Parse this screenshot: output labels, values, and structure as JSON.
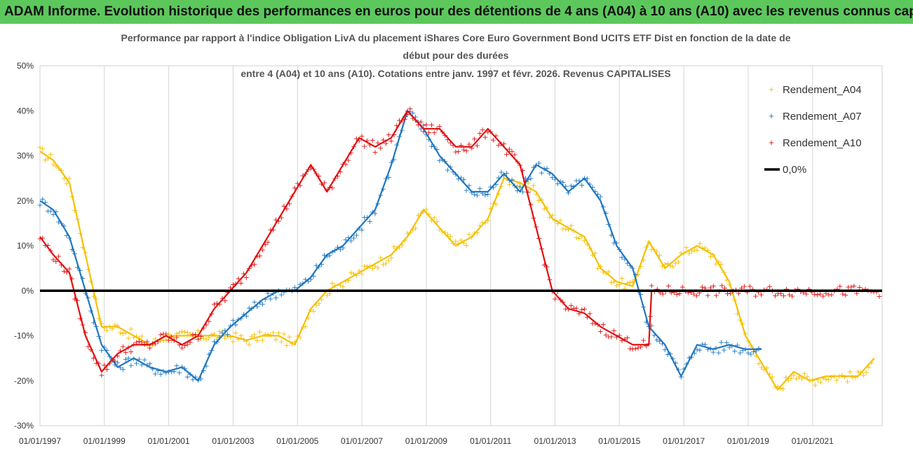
{
  "banner": "ADAM Informe. Evolution historique des performances en euros pour des détentions de 4 ans (A04) à 10 ans (A10) avec les revenus connus capitalisés",
  "chart_data": {
    "type": "scatter",
    "title_lines": [
      "Performance par rapport à l'indice Obligation LivA  du placement iShares Core Euro Government Bond UCITS ETF Dist en fonction de la date de",
      "début pour des durées",
      "entre 4 (A04) et 10 ans (A10). Cotations entre janv. 1997 et févr. 2026. Revenus CAPITALISES"
    ],
    "x_tick_labels": [
      "01/01/1997",
      "01/01/1999",
      "01/01/2001",
      "01/01/2003",
      "01/01/2005",
      "01/01/2007",
      "01/01/2009",
      "01/01/2011",
      "01/01/2013",
      "01/01/2015",
      "01/01/2017",
      "01/01/2019",
      "01/01/2021"
    ],
    "y_tick_labels": [
      "50%",
      "40%",
      "30%",
      "20%",
      "10%",
      "0%",
      "-10%",
      "-20%",
      "-30%"
    ],
    "xlim": [
      "1997-01-01",
      "2023-03-01"
    ],
    "ylim": [
      -30,
      50
    ],
    "grid": "vertical",
    "legend_position": "right",
    "series": [
      {
        "name": "Rendement_A04",
        "color": "#f5c000",
        "points": [
          [
            "1997-01",
            "31"
          ],
          [
            "1997-06",
            "29"
          ],
          [
            "1997-12",
            "24"
          ],
          [
            "1998-06",
            "8"
          ],
          [
            "1998-12",
            "-8"
          ],
          [
            "1999-06",
            "-8"
          ],
          [
            "1999-12",
            "-10"
          ],
          [
            "2000-06",
            "-12"
          ],
          [
            "2000-12",
            "-10"
          ],
          [
            "2001-06",
            "-10"
          ],
          [
            "2001-12",
            "-10"
          ],
          [
            "2002-06",
            "-10"
          ],
          [
            "2002-12",
            "-10"
          ],
          [
            "2003-06",
            "-11"
          ],
          [
            "2003-12",
            "-10"
          ],
          [
            "2004-06",
            "-10"
          ],
          [
            "2004-12",
            "-12"
          ],
          [
            "2005-06",
            "-4"
          ],
          [
            "2005-12",
            "0"
          ],
          [
            "2006-06",
            "2"
          ],
          [
            "2006-12",
            "4"
          ],
          [
            "2007-06",
            "6"
          ],
          [
            "2007-12",
            "8"
          ],
          [
            "2008-06",
            "12"
          ],
          [
            "2008-12",
            "18"
          ],
          [
            "2009-06",
            "14"
          ],
          [
            "2009-12",
            "10"
          ],
          [
            "2010-06",
            "12"
          ],
          [
            "2010-12",
            "16"
          ],
          [
            "2011-06",
            "25"
          ],
          [
            "2011-12",
            "24"
          ],
          [
            "2012-06",
            "22"
          ],
          [
            "2012-12",
            "16"
          ],
          [
            "2013-06",
            "14"
          ],
          [
            "2013-12",
            "12"
          ],
          [
            "2014-06",
            "5"
          ],
          [
            "2014-12",
            "2"
          ],
          [
            "2015-06",
            "1"
          ],
          [
            "2015-12",
            "11"
          ],
          [
            "2016-06",
            "5"
          ],
          [
            "2016-12",
            "8"
          ],
          [
            "2017-06",
            "10"
          ],
          [
            "2017-12",
            "8"
          ],
          [
            "2018-06",
            "2"
          ],
          [
            "2018-12",
            "-10"
          ],
          [
            "2019-06",
            "-16"
          ],
          [
            "2019-12",
            "-22"
          ],
          [
            "2020-06",
            "-18"
          ],
          [
            "2020-12",
            "-20"
          ],
          [
            "2021-06",
            "-19"
          ],
          [
            "2021-12",
            "-19"
          ],
          [
            "2022-06",
            "-19"
          ],
          [
            "2022-12",
            "-15"
          ]
        ]
      },
      {
        "name": "Rendement_A07",
        "color": "#1f77c0",
        "points": [
          [
            "1997-01",
            "20"
          ],
          [
            "1997-06",
            "18"
          ],
          [
            "1997-12",
            "12"
          ],
          [
            "1998-06",
            "0"
          ],
          [
            "1998-12",
            "-12"
          ],
          [
            "1999-06",
            "-17"
          ],
          [
            "1999-12",
            "-15"
          ],
          [
            "2000-06",
            "-17"
          ],
          [
            "2000-12",
            "-18"
          ],
          [
            "2001-06",
            "-17"
          ],
          [
            "2001-12",
            "-20"
          ],
          [
            "2002-06",
            "-12"
          ],
          [
            "2002-12",
            "-8"
          ],
          [
            "2003-06",
            "-5"
          ],
          [
            "2003-12",
            "-2"
          ],
          [
            "2004-06",
            "0"
          ],
          [
            "2004-12",
            "0"
          ],
          [
            "2005-06",
            "3"
          ],
          [
            "2005-12",
            "8"
          ],
          [
            "2006-06",
            "10"
          ],
          [
            "2006-12",
            "14"
          ],
          [
            "2007-06",
            "18"
          ],
          [
            "2007-12",
            "28"
          ],
          [
            "2008-06",
            "40"
          ],
          [
            "2008-12",
            "36"
          ],
          [
            "2009-06",
            "30"
          ],
          [
            "2009-12",
            "26"
          ],
          [
            "2010-06",
            "22"
          ],
          [
            "2010-12",
            "22"
          ],
          [
            "2011-06",
            "26"
          ],
          [
            "2011-12",
            "22"
          ],
          [
            "2012-06",
            "28"
          ],
          [
            "2012-12",
            "26"
          ],
          [
            "2013-06",
            "22"
          ],
          [
            "2013-12",
            "25"
          ],
          [
            "2014-06",
            "20"
          ],
          [
            "2014-12",
            "10"
          ],
          [
            "2015-06",
            "5"
          ],
          [
            "2015-12",
            "-8"
          ],
          [
            "2016-06",
            "-12"
          ],
          [
            "2016-12",
            "-19"
          ],
          [
            "2017-06",
            "-12"
          ],
          [
            "2017-12",
            "-13"
          ],
          [
            "2018-06",
            "-12"
          ],
          [
            "2018-12",
            "-13"
          ],
          [
            "2019-06",
            "-13"
          ]
        ]
      },
      {
        "name": "Rendement_A10",
        "color": "#e01010",
        "points": [
          [
            "1997-01",
            "12"
          ],
          [
            "1997-06",
            "8"
          ],
          [
            "1997-12",
            "4"
          ],
          [
            "1998-06",
            "-10"
          ],
          [
            "1998-12",
            "-18"
          ],
          [
            "1999-06",
            "-14"
          ],
          [
            "1999-12",
            "-12"
          ],
          [
            "2000-06",
            "-12"
          ],
          [
            "2000-12",
            "-10"
          ],
          [
            "2001-06",
            "-12"
          ],
          [
            "2001-12",
            "-10"
          ],
          [
            "2002-06",
            "-4"
          ],
          [
            "2002-12",
            "0"
          ],
          [
            "2003-06",
            "4"
          ],
          [
            "2003-12",
            "10"
          ],
          [
            "2004-06",
            "16"
          ],
          [
            "2004-12",
            "22"
          ],
          [
            "2005-06",
            "28"
          ],
          [
            "2005-12",
            "22"
          ],
          [
            "2006-06",
            "28"
          ],
          [
            "2006-12",
            "34"
          ],
          [
            "2007-06",
            "32"
          ],
          [
            "2007-12",
            "34"
          ],
          [
            "2008-06",
            "40"
          ],
          [
            "2008-12",
            "36"
          ],
          [
            "2009-06",
            "36"
          ],
          [
            "2009-12",
            "32"
          ],
          [
            "2010-06",
            "32"
          ],
          [
            "2010-12",
            "36"
          ],
          [
            "2011-06",
            "32"
          ],
          [
            "2011-12",
            "28"
          ],
          [
            "2012-06",
            "14"
          ],
          [
            "2012-12",
            "0"
          ],
          [
            "2013-06",
            "-4"
          ],
          [
            "2013-12",
            "-5"
          ],
          [
            "2014-06",
            "-8"
          ],
          [
            "2014-12",
            "-10"
          ],
          [
            "2015-06",
            "-12"
          ],
          [
            "2015-12",
            "-12"
          ],
          [
            "2016-01",
            "0"
          ],
          [
            "2023-03",
            "0"
          ]
        ]
      },
      {
        "name": "0,0%",
        "color": "#000000",
        "line": true,
        "points": [
          [
            "1997-01",
            "0"
          ],
          [
            "2023-03",
            "0"
          ]
        ]
      }
    ]
  }
}
